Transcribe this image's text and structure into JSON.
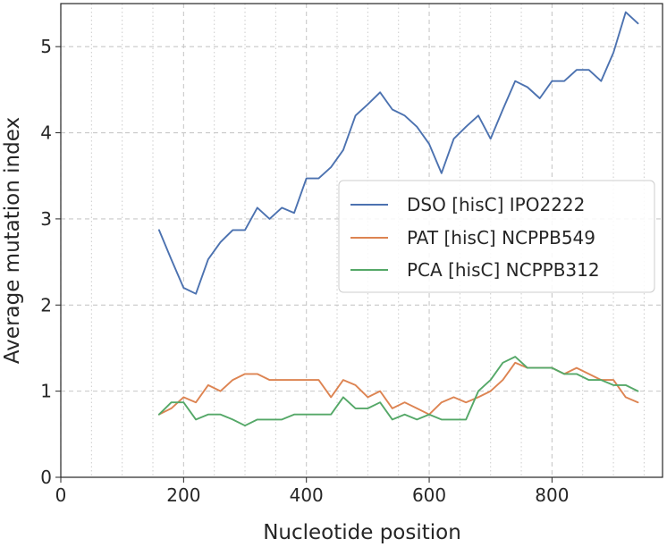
{
  "chart_data": {
    "type": "line",
    "xlabel": "Nucleotide position",
    "ylabel": "Average mutation index",
    "xlim": [
      0,
      980
    ],
    "ylim": [
      0,
      5.5
    ],
    "x_major_ticks": [
      0,
      200,
      400,
      600,
      800
    ],
    "x_minor_ticks": [
      50,
      100,
      150,
      250,
      300,
      350,
      450,
      500,
      550,
      650,
      700,
      750,
      850,
      900,
      950
    ],
    "y_major_ticks": [
      0,
      1,
      2,
      3,
      4,
      5
    ],
    "grid": true,
    "legend_position": "center-right",
    "series": [
      {
        "name": "DSO [hisC] IPO2222",
        "color": "#4c72b0",
        "x": [
          160,
          180,
          200,
          220,
          240,
          260,
          280,
          300,
          320,
          340,
          360,
          380,
          400,
          420,
          440,
          460,
          480,
          500,
          520,
          540,
          560,
          580,
          600,
          620,
          640,
          660,
          680,
          700,
          720,
          740,
          760,
          780,
          800,
          820,
          840,
          860,
          880,
          900,
          920,
          940
        ],
        "y": [
          2.87,
          2.53,
          2.2,
          2.13,
          2.53,
          2.73,
          2.87,
          2.87,
          3.13,
          3.0,
          3.13,
          3.07,
          3.47,
          3.47,
          3.6,
          3.8,
          4.2,
          4.33,
          4.47,
          4.27,
          4.2,
          4.07,
          3.87,
          3.53,
          3.93,
          4.07,
          4.2,
          3.93,
          4.27,
          4.6,
          4.53,
          4.4,
          4.6,
          4.6,
          4.73,
          4.73,
          4.6,
          4.93,
          5.4,
          5.27
        ]
      },
      {
        "name": "PAT [hisC] NCPPB549",
        "color": "#dd8452",
        "x": [
          160,
          180,
          200,
          220,
          240,
          260,
          280,
          300,
          320,
          340,
          360,
          380,
          400,
          420,
          440,
          460,
          480,
          500,
          520,
          540,
          560,
          580,
          600,
          620,
          640,
          660,
          680,
          700,
          720,
          740,
          760,
          780,
          800,
          820,
          840,
          860,
          880,
          900,
          920,
          940
        ],
        "y": [
          0.73,
          0.8,
          0.93,
          0.87,
          1.07,
          1.0,
          1.13,
          1.2,
          1.2,
          1.13,
          1.13,
          1.13,
          1.13,
          1.13,
          0.93,
          1.13,
          1.07,
          0.93,
          1.0,
          0.8,
          0.87,
          0.8,
          0.73,
          0.87,
          0.93,
          0.87,
          0.93,
          1.0,
          1.13,
          1.33,
          1.27,
          1.27,
          1.27,
          1.2,
          1.27,
          1.2,
          1.13,
          1.13,
          0.93,
          0.87
        ]
      },
      {
        "name": "PCA [hisC] NCPPB312",
        "color": "#55a868",
        "x": [
          160,
          180,
          200,
          220,
          240,
          260,
          280,
          300,
          320,
          340,
          360,
          380,
          400,
          420,
          440,
          460,
          480,
          500,
          520,
          540,
          560,
          580,
          600,
          620,
          640,
          660,
          680,
          700,
          720,
          740,
          760,
          780,
          800,
          820,
          840,
          860,
          880,
          900,
          920,
          940
        ],
        "y": [
          0.73,
          0.87,
          0.87,
          0.67,
          0.73,
          0.73,
          0.67,
          0.6,
          0.67,
          0.67,
          0.67,
          0.73,
          0.73,
          0.73,
          0.73,
          0.93,
          0.8,
          0.8,
          0.87,
          0.67,
          0.73,
          0.67,
          0.73,
          0.67,
          0.67,
          0.67,
          1.0,
          1.13,
          1.33,
          1.4,
          1.27,
          1.27,
          1.27,
          1.2,
          1.2,
          1.13,
          1.13,
          1.07,
          1.07,
          1.0
        ]
      }
    ]
  }
}
